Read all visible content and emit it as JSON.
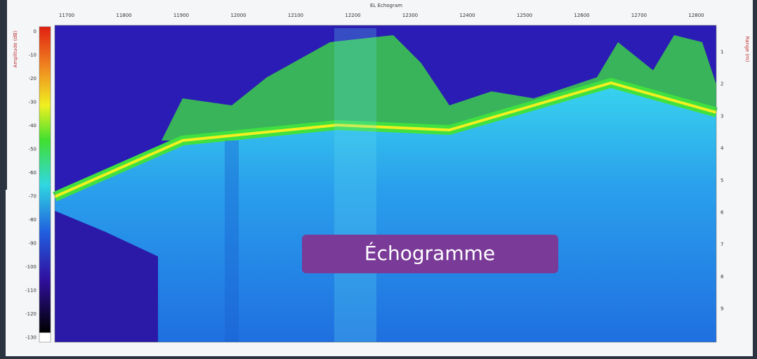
{
  "title": "EL Echogram",
  "left_axis_label": "Amplitude (dB)",
  "right_axis_label": "Range (m)",
  "x_ticks": [
    11700,
    11800,
    11900,
    12000,
    12100,
    12200,
    12300,
    12400,
    12500,
    12600,
    12700,
    12800
  ],
  "colorbar_ticks": [
    0,
    -10,
    -20,
    -30,
    -40,
    -50,
    -60,
    -70,
    -80,
    -90,
    -100,
    -110,
    -120,
    -130
  ],
  "range_ticks": [
    1,
    2,
    3,
    4,
    5,
    6,
    7,
    8,
    9
  ],
  "overlay_label": "Échogramme"
}
